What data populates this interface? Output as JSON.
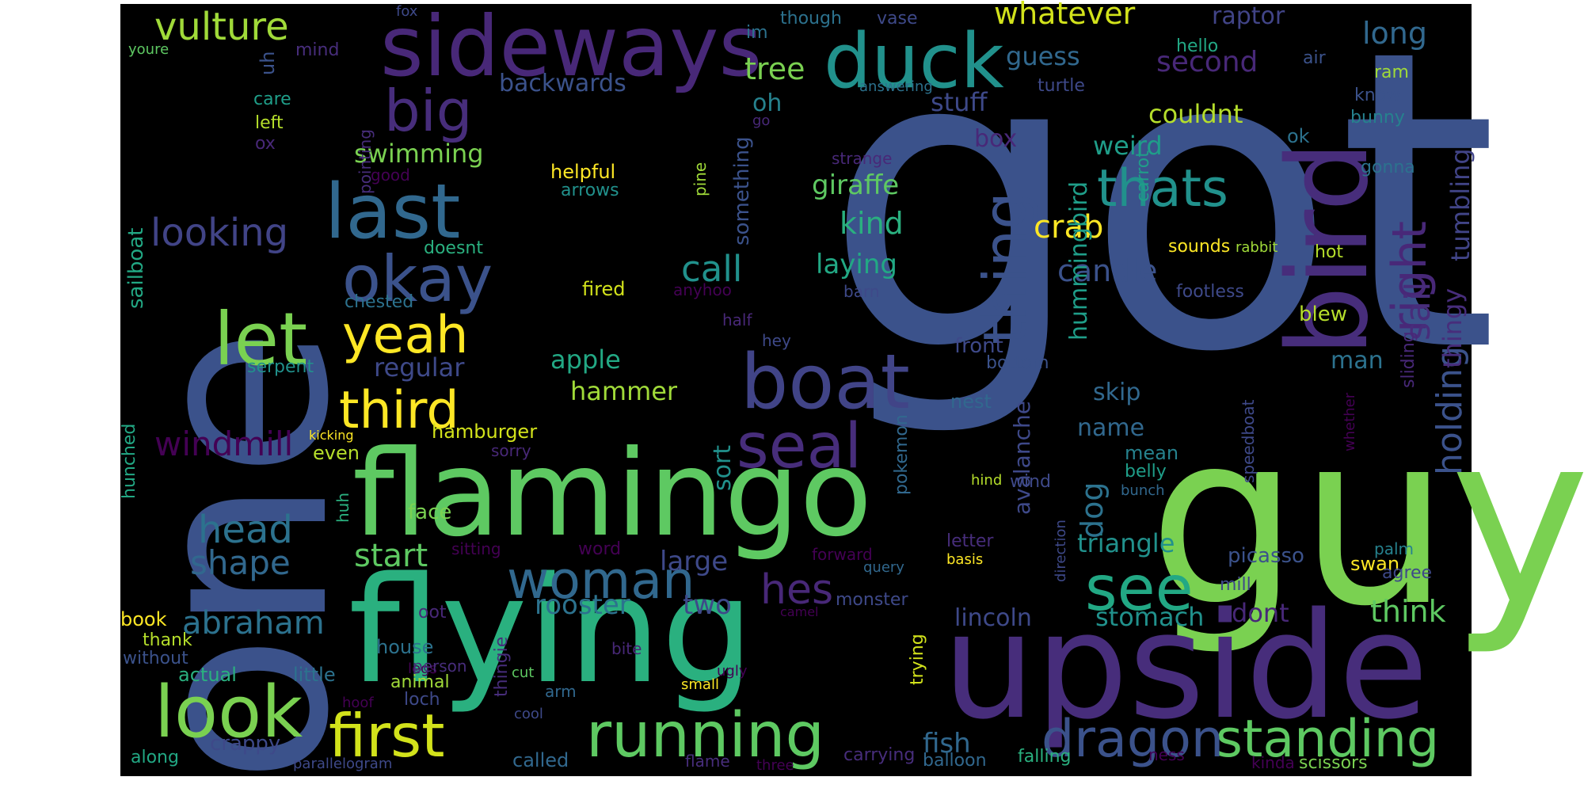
{
  "background": "#000000",
  "words": [
    {
      "text": "got",
      "color": "#3b528b"
    },
    {
      "text": "one",
      "color": "#3b528b"
    },
    {
      "text": "guy",
      "color": "#7ad151"
    },
    {
      "text": "flying",
      "color": "#2ab07f"
    },
    {
      "text": "upside",
      "color": "#472d7b"
    },
    {
      "text": "flamingo",
      "color": "#5ec962"
    },
    {
      "text": "bird",
      "color": "#472d7b"
    },
    {
      "text": "sideways",
      "color": "#482878"
    },
    {
      "text": "duck",
      "color": "#21918c"
    },
    {
      "text": "boat",
      "color": "#414487"
    },
    {
      "text": "look",
      "color": "#7ad151"
    },
    {
      "text": "running",
      "color": "#5ec962"
    },
    {
      "text": "last",
      "color": "#31688e"
    },
    {
      "text": "let",
      "color": "#7ad151"
    },
    {
      "text": "big",
      "color": "#472d7b"
    },
    {
      "text": "okay",
      "color": "#3b528b"
    },
    {
      "text": "seal",
      "color": "#472d7b"
    },
    {
      "text": "see",
      "color": "#22a884"
    },
    {
      "text": "woman",
      "color": "#31688e"
    },
    {
      "text": "first",
      "color": "#d2e21b"
    },
    {
      "text": "standing",
      "color": "#5ec962"
    },
    {
      "text": "dragon",
      "color": "#3b528b"
    },
    {
      "text": "right",
      "color": "#482878"
    },
    {
      "text": "thing",
      "color": "#3b528b"
    },
    {
      "text": "thats",
      "color": "#21918c"
    },
    {
      "text": "yeah",
      "color": "#fde725"
    },
    {
      "text": "vulture",
      "color": "#a0da39"
    },
    {
      "text": "third",
      "color": "#fde725"
    },
    {
      "text": "head",
      "color": "#2c728e"
    },
    {
      "text": "shape",
      "color": "#31688e"
    },
    {
      "text": "looking",
      "color": "#414487"
    },
    {
      "text": "hes",
      "color": "#482878"
    },
    {
      "text": "holding",
      "color": "#3b528b"
    },
    {
      "text": "windmill",
      "color": "#440154"
    },
    {
      "text": "sail",
      "color": "#472d7b"
    },
    {
      "text": "whatever",
      "color": "#d2e21b"
    },
    {
      "text": "abraham",
      "color": "#2c728e"
    },
    {
      "text": "start",
      "color": "#5ec962"
    },
    {
      "text": "call",
      "color": "#21918c"
    },
    {
      "text": "crab",
      "color": "#fde725"
    },
    {
      "text": "candle",
      "color": "#3b528b"
    },
    {
      "text": "tree",
      "color": "#7ad151"
    },
    {
      "text": "long",
      "color": "#31688e"
    },
    {
      "text": "second",
      "color": "#482878"
    },
    {
      "text": "kind",
      "color": "#2ab07f"
    },
    {
      "text": "giraffe",
      "color": "#5ec962"
    },
    {
      "text": "laying",
      "color": "#22a884"
    },
    {
      "text": "tumbling",
      "color": "#414487"
    },
    {
      "text": "thingy",
      "color": "#472d7b"
    },
    {
      "text": "raptor",
      "color": "#414487"
    },
    {
      "text": "guess",
      "color": "#31688e"
    },
    {
      "text": "couldnt",
      "color": "#b5de2b"
    },
    {
      "text": "stuff",
      "color": "#3e4989"
    },
    {
      "text": "weird",
      "color": "#1f9e89"
    },
    {
      "text": "backwards",
      "color": "#3b528b"
    },
    {
      "text": "swimming",
      "color": "#7ad151"
    },
    {
      "text": "oh",
      "color": "#26828e"
    },
    {
      "text": "box",
      "color": "#482878"
    },
    {
      "text": "apple",
      "color": "#22a884"
    },
    {
      "text": "hammer",
      "color": "#a0da39"
    },
    {
      "text": "regular",
      "color": "#3e4989"
    },
    {
      "text": "large",
      "color": "#3e4989"
    },
    {
      "text": "two",
      "color": "#3e4989"
    },
    {
      "text": "rooster",
      "color": "#2c728e"
    },
    {
      "text": "think",
      "color": "#5ec962"
    },
    {
      "text": "fish",
      "color": "#31688e"
    },
    {
      "text": "stomach",
      "color": "#21918c"
    },
    {
      "text": "lincoln",
      "color": "#3e4989"
    },
    {
      "text": "dont",
      "color": "#482878"
    },
    {
      "text": "triangle",
      "color": "#21918c"
    },
    {
      "text": "name",
      "color": "#31688e"
    },
    {
      "text": "skip",
      "color": "#31688e"
    },
    {
      "text": "hummingbird",
      "color": "#1f9e89"
    },
    {
      "text": "dog",
      "color": "#2c728e"
    },
    {
      "text": "avalanche",
      "color": "#3e4989"
    },
    {
      "text": "sort",
      "color": "#21918c"
    },
    {
      "text": "man",
      "color": "#2c728e"
    },
    {
      "text": "sailboat",
      "color": "#22a884"
    },
    {
      "text": "something",
      "color": "#3b528b"
    },
    {
      "text": "pokemon",
      "color": "#31688e"
    },
    {
      "text": "picasso",
      "color": "#3b528b"
    },
    {
      "text": "hamburger",
      "color": "#d2e21b"
    },
    {
      "text": "even",
      "color": "#b5de2b"
    },
    {
      "text": "face",
      "color": "#7ad151"
    },
    {
      "text": "front",
      "color": "#3e4989"
    },
    {
      "text": "bottom",
      "color": "#3b528b"
    },
    {
      "text": "nest",
      "color": "#31688e"
    },
    {
      "text": "mean",
      "color": "#26828e"
    },
    {
      "text": "belly",
      "color": "#1f9e89"
    },
    {
      "text": "wind",
      "color": "#3e4989"
    },
    {
      "text": "swan",
      "color": "#fde725"
    },
    {
      "text": "palm",
      "color": "#26828e"
    },
    {
      "text": "agree",
      "color": "#3e4989"
    },
    {
      "text": "blew",
      "color": "#b5de2b"
    },
    {
      "text": "sliding",
      "color": "#482878"
    },
    {
      "text": "hot",
      "color": "#b5de2b"
    },
    {
      "text": "footless",
      "color": "#3e4989"
    },
    {
      "text": "sounds",
      "color": "#fde725"
    },
    {
      "text": "rabbit",
      "color": "#a0da39"
    },
    {
      "text": "carrot",
      "color": "#1f9e89"
    },
    {
      "text": "gonna",
      "color": "#2c728e"
    },
    {
      "text": "ok",
      "color": "#2c728e"
    },
    {
      "text": "bunny",
      "color": "#26828e"
    },
    {
      "text": "know",
      "color": "#3b528b"
    },
    {
      "text": "ram",
      "color": "#a0da39"
    },
    {
      "text": "air",
      "color": "#3b528b"
    },
    {
      "text": "hello",
      "color": "#22a884"
    },
    {
      "text": "turtle",
      "color": "#3e4989"
    },
    {
      "text": "answering",
      "color": "#2c728e"
    },
    {
      "text": "vase",
      "color": "#3e4989"
    },
    {
      "text": "though",
      "color": "#2c728e"
    },
    {
      "text": "im",
      "color": "#2c728e"
    },
    {
      "text": "fox",
      "color": "#3e4989"
    },
    {
      "text": "youre",
      "color": "#5ec962"
    },
    {
      "text": "mind",
      "color": "#472d7b"
    },
    {
      "text": "uh",
      "color": "#3b528b"
    },
    {
      "text": "care",
      "color": "#1f9e89"
    },
    {
      "text": "left",
      "color": "#b5de2b"
    },
    {
      "text": "ox",
      "color": "#482878"
    },
    {
      "text": "pointing",
      "color": "#472d7b"
    },
    {
      "text": "good",
      "color": "#440154"
    },
    {
      "text": "doesnt",
      "color": "#2ab07f"
    },
    {
      "text": "chested",
      "color": "#2c728e"
    },
    {
      "text": "serpent",
      "color": "#21918c"
    },
    {
      "text": "helpful",
      "color": "#fde725"
    },
    {
      "text": "arrows",
      "color": "#21918c"
    },
    {
      "text": "go",
      "color": "#482878"
    },
    {
      "text": "pine",
      "color": "#a0da39"
    },
    {
      "text": "strange",
      "color": "#482878"
    },
    {
      "text": "fired",
      "color": "#d2e21b"
    },
    {
      "text": "anyhoo",
      "color": "#440154"
    },
    {
      "text": "half",
      "color": "#482878"
    },
    {
      "text": "hey",
      "color": "#3e4989"
    },
    {
      "text": "barn",
      "color": "#3e4989"
    },
    {
      "text": "kicking",
      "color": "#fde725"
    },
    {
      "text": "sorry",
      "color": "#482878"
    },
    {
      "text": "hunched",
      "color": "#22a884"
    },
    {
      "text": "huh",
      "color": "#2ab07f"
    },
    {
      "text": "sitting",
      "color": "#440154"
    },
    {
      "text": "word",
      "color": "#440154"
    },
    {
      "text": "forward",
      "color": "#440154"
    },
    {
      "text": "letter",
      "color": "#472d7b"
    },
    {
      "text": "basis",
      "color": "#fde725"
    },
    {
      "text": "query",
      "color": "#31688e"
    },
    {
      "text": "direction",
      "color": "#3e4989"
    },
    {
      "text": "hind",
      "color": "#b5de2b"
    },
    {
      "text": "bunch",
      "color": "#31688e"
    },
    {
      "text": "whether",
      "color": "#440154"
    },
    {
      "text": "speedboat",
      "color": "#3e4989"
    },
    {
      "text": "mill",
      "color": "#3e4989"
    },
    {
      "text": "monster",
      "color": "#3e4989"
    },
    {
      "text": "camel",
      "color": "#440154"
    },
    {
      "text": "trying",
      "color": "#d2e21b"
    },
    {
      "text": "book",
      "color": "#fde725"
    },
    {
      "text": "thank",
      "color": "#b5de2b"
    },
    {
      "text": "without",
      "color": "#3b528b"
    },
    {
      "text": "house",
      "color": "#2c728e"
    },
    {
      "text": "oot",
      "color": "#482878"
    },
    {
      "text": "legs",
      "color": "#440154"
    },
    {
      "text": "person",
      "color": "#472d7b"
    },
    {
      "text": "bite",
      "color": "#482878"
    },
    {
      "text": "thingie",
      "color": "#472d7b"
    },
    {
      "text": "ugly",
      "color": "#440154"
    },
    {
      "text": "actual",
      "color": "#2ab07f"
    },
    {
      "text": "little",
      "color": "#2c728e"
    },
    {
      "text": "animal",
      "color": "#a0da39"
    },
    {
      "text": "cut",
      "color": "#5ec962"
    },
    {
      "text": "loch",
      "color": "#3e4989"
    },
    {
      "text": "hoof",
      "color": "#440154"
    },
    {
      "text": "arm",
      "color": "#31688e"
    },
    {
      "text": "small",
      "color": "#fde725"
    },
    {
      "text": "cool",
      "color": "#3e4989"
    },
    {
      "text": "crappy",
      "color": "#3e4989"
    },
    {
      "text": "along",
      "color": "#22a884"
    },
    {
      "text": "parallelogram",
      "color": "#3e4989"
    },
    {
      "text": "called",
      "color": "#31688e"
    },
    {
      "text": "flame",
      "color": "#472d7b"
    },
    {
      "text": "three",
      "color": "#440154"
    },
    {
      "text": "carrying",
      "color": "#472d7b"
    },
    {
      "text": "balloon",
      "color": "#31688e"
    },
    {
      "text": "falling",
      "color": "#2ab07f"
    },
    {
      "text": "ness",
      "color": "#440154"
    },
    {
      "text": "kinda",
      "color": "#440154"
    },
    {
      "text": "scissors",
      "color": "#7ad151"
    }
  ]
}
